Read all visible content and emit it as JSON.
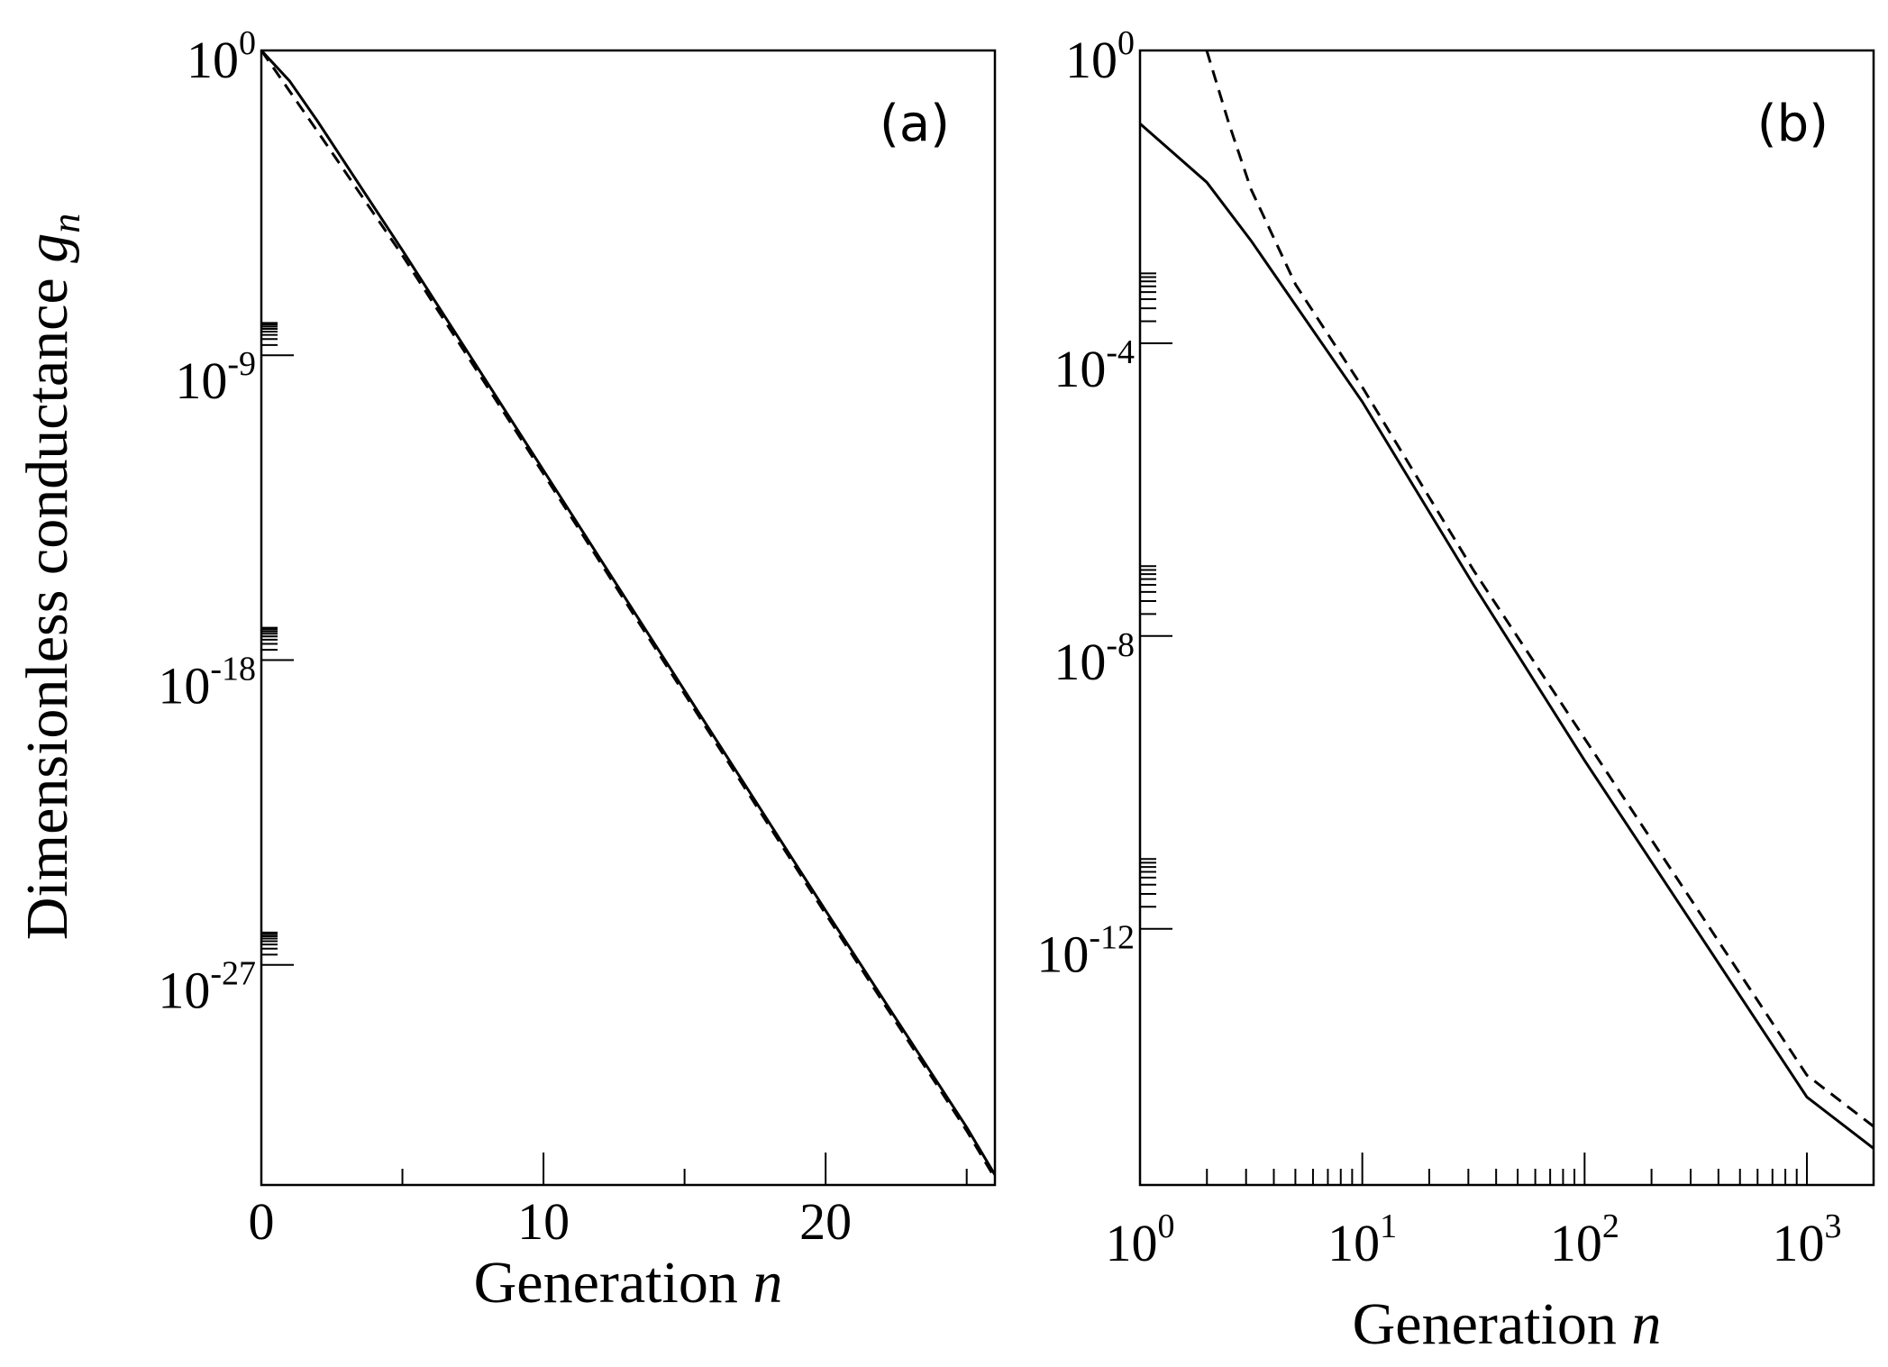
{
  "y_axis_title": {
    "prefix": "Dimensionless conductance ",
    "var": "g",
    "sub": "n"
  },
  "chart_data": [
    {
      "type": "line",
      "panel_label": "(a)",
      "xlabel": {
        "prefix": "Generation ",
        "var": "n"
      },
      "xscale": "linear",
      "yscale": "log",
      "xlim": [
        0,
        26
      ],
      "ylim_log10": [
        -33.5,
        0
      ],
      "xticks": [
        {
          "value": 0,
          "label": "0"
        },
        {
          "value": 10,
          "label": "10"
        },
        {
          "value": 20,
          "label": "20"
        }
      ],
      "xminor": [
        5,
        15,
        25
      ],
      "yticks": [
        {
          "exp": 0,
          "base": "10",
          "sup": "0"
        },
        {
          "exp": -9,
          "base": "10",
          "sup": "-9"
        },
        {
          "exp": -18,
          "base": "10",
          "sup": "-18"
        },
        {
          "exp": -27,
          "base": "10",
          "sup": "-27"
        }
      ],
      "series": [
        {
          "style": "solid",
          "x": [
            0,
            1,
            2,
            5,
            10,
            15,
            20,
            25,
            26
          ],
          "log10_y": [
            0,
            -0.9,
            -2.1,
            -5.9,
            -12.4,
            -18.9,
            -25.4,
            -31.8,
            -33.2
          ]
        },
        {
          "style": "dashed",
          "x": [
            0,
            1,
            2,
            5,
            10,
            15,
            20,
            25,
            26
          ],
          "log10_y": [
            0,
            -1.2,
            -2.4,
            -6.05,
            -12.5,
            -19.0,
            -25.5,
            -31.9,
            -33.3
          ]
        }
      ]
    },
    {
      "type": "line",
      "panel_label": "(b)",
      "xlabel": {
        "prefix": "Generation ",
        "var": "n"
      },
      "xscale": "log",
      "yscale": "log",
      "xlim_log10": [
        0,
        3.3
      ],
      "ylim_log10": [
        -15.5,
        0
      ],
      "xticks": [
        {
          "exp": 0,
          "base": "10",
          "sup": "0"
        },
        {
          "exp": 1,
          "base": "10",
          "sup": "1"
        },
        {
          "exp": 2,
          "base": "10",
          "sup": "2"
        },
        {
          "exp": 3,
          "base": "10",
          "sup": "3"
        }
      ],
      "yticks": [
        {
          "exp": 0,
          "base": "10",
          "sup": "0"
        },
        {
          "exp": -4,
          "base": "10",
          "sup": "-4"
        },
        {
          "exp": -8,
          "base": "10",
          "sup": "-8"
        },
        {
          "exp": -12,
          "base": "10",
          "sup": "-12"
        }
      ],
      "series": [
        {
          "style": "solid",
          "log10_x": [
            0,
            0.3,
            0.5,
            1,
            1.5,
            2,
            2.5,
            3,
            3.3
          ],
          "log10_y": [
            -1.0,
            -1.8,
            -2.6,
            -4.8,
            -7.3,
            -9.7,
            -12.0,
            -14.3,
            -15.0
          ]
        },
        {
          "style": "dashed",
          "log10_x": [
            0.3,
            0.4,
            0.5,
            0.7,
            1,
            1.5,
            2,
            2.5,
            3,
            3.3
          ],
          "log10_y": [
            0,
            -1.0,
            -1.9,
            -3.2,
            -4.6,
            -7.1,
            -9.4,
            -11.7,
            -14.0,
            -14.7
          ]
        }
      ]
    }
  ]
}
